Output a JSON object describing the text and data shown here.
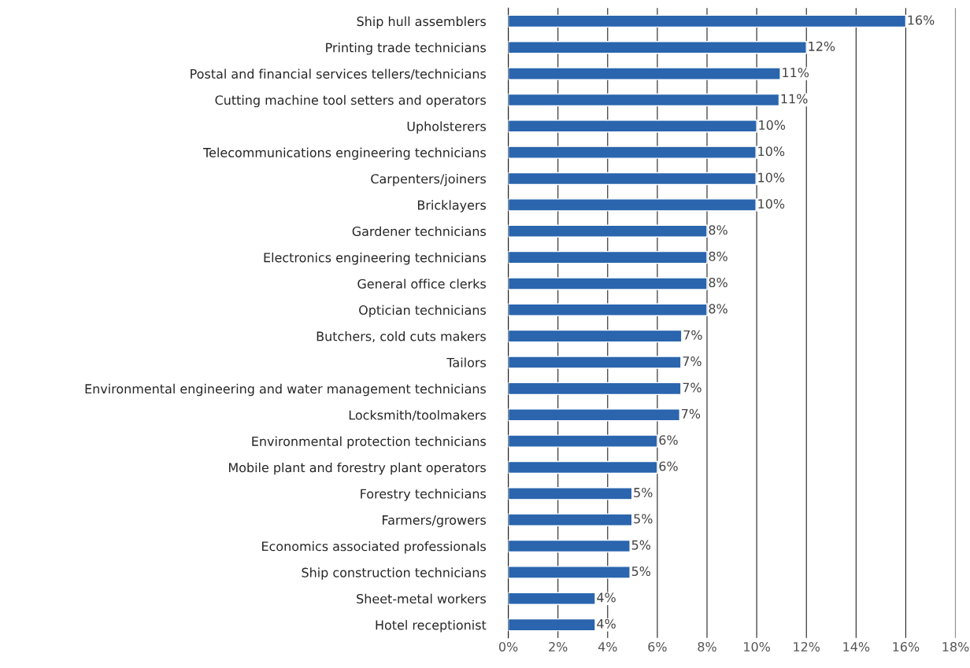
{
  "chart_data": {
    "type": "bar",
    "orientation": "horizontal",
    "categories": [
      "Ship hull assemblers",
      "Printing trade technicians",
      "Postal and financial services tellers/technicians",
      "Cutting machine tool setters and operators",
      "Upholsterers",
      "Telecommunications engineering technicians",
      "Carpenters/joiners",
      "Bricklayers",
      "Gardener technicians",
      "Electronics engineering technicians",
      "General office clerks",
      "Optician technicians",
      "Butchers, cold cuts makers",
      "Tailors",
      "Environmental engineering and water management technicians",
      "Locksmith/toolmakers",
      "Environmental protection technicians",
      "Mobile plant and forestry plant operators",
      "Forestry technicians",
      "Farmers/growers",
      "Economics associated professionals",
      "Ship construction technicians",
      "Sheet-metal workers",
      "Hotel receptionist"
    ],
    "values": [
      16.0,
      12.0,
      10.95,
      10.9,
      10.0,
      9.97,
      9.97,
      9.97,
      8.0,
      8.0,
      8.0,
      8.0,
      6.98,
      6.95,
      6.95,
      6.9,
      6.0,
      6.0,
      4.98,
      4.98,
      4.9,
      4.9,
      3.5,
      3.5
    ],
    "value_labels": [
      "16%",
      "12%",
      "11%",
      "11%",
      "10%",
      "10%",
      "10%",
      "10%",
      "8%",
      "8%",
      "8%",
      "8%",
      "7%",
      "7%",
      "7%",
      "7%",
      "6%",
      "6%",
      "5%",
      "5%",
      "5%",
      "5%",
      "4%",
      "4%"
    ],
    "color": "#2a65ae",
    "xlim": [
      0,
      18
    ],
    "xticks": [
      {
        "value": 0,
        "label": "0%"
      },
      {
        "value": 2,
        "label": "2%"
      },
      {
        "value": 4,
        "label": "4%"
      },
      {
        "value": 6,
        "label": "6%"
      },
      {
        "value": 8,
        "label": "8%"
      },
      {
        "value": 10,
        "label": "10%"
      },
      {
        "value": 12,
        "label": "12%"
      },
      {
        "value": 14,
        "label": "14%"
      },
      {
        "value": 16,
        "label": "16%"
      },
      {
        "value": 18,
        "label": "18%"
      }
    ],
    "grid": "x",
    "legend": false
  }
}
